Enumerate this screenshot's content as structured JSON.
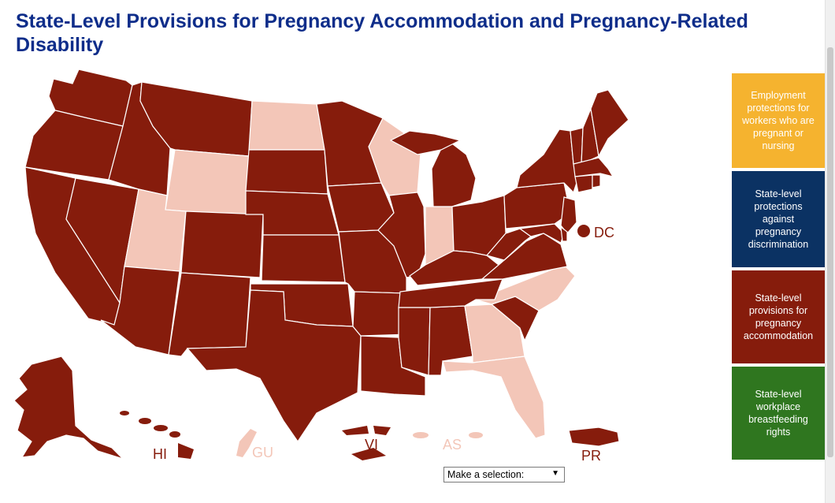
{
  "page": {
    "title": "State-Level Provisions for Pregnancy Accommodation and Pregnancy-Related Disability"
  },
  "colors": {
    "has_provision": "#861c0c",
    "no_provision": "#f3c6b8",
    "title": "#0e2d8a",
    "legend_employment": "#f5b32f",
    "legend_discrimination": "#0b3263",
    "legend_accommodation": "#861c0c",
    "legend_breastfeeding": "#2f761f"
  },
  "map": {
    "labels": {
      "dc": "DC",
      "hi": "HI",
      "gu": "GU",
      "vi": "VI",
      "as": "AS",
      "pr": "PR"
    },
    "no_provision_states": [
      "ND",
      "WY",
      "UT",
      "WI",
      "IN",
      "NC",
      "GA",
      "FL",
      "GU",
      "AS"
    ]
  },
  "legend": {
    "items": [
      {
        "label": "Employment protections for workers who are pregnant or nursing",
        "color": "#f5b32f"
      },
      {
        "label": "State-level protections against pregnancy discrimination",
        "color": "#0b3263"
      },
      {
        "label": "State-level provisions for pregnancy accommodation",
        "color": "#861c0c"
      },
      {
        "label": "State-level workplace breastfeeding rights",
        "color": "#2f761f"
      }
    ]
  },
  "dropdown": {
    "selected": "Make a selection:"
  }
}
